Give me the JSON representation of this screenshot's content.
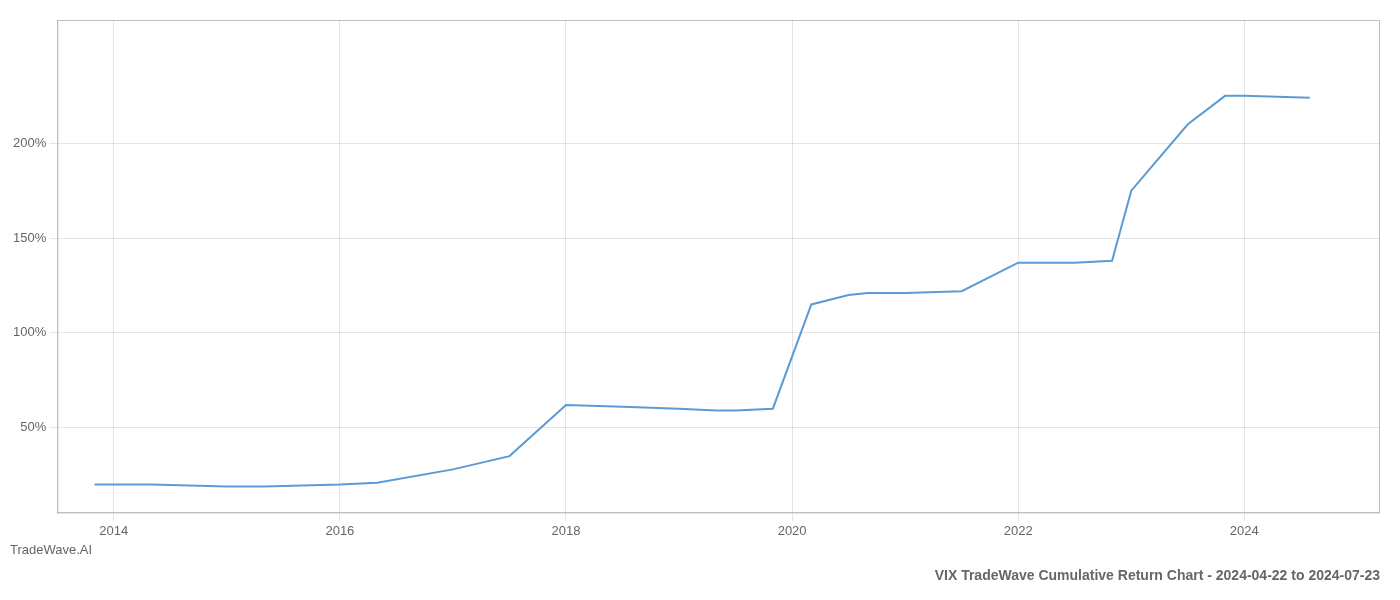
{
  "chart_data": {
    "type": "line",
    "title": "VIX TradeWave Cumulative Return Chart - 2024-04-22 to 2024-07-23",
    "subtitle": "TradeWave.AI",
    "x": [
      2013.83,
      2014.33,
      2015.0,
      2015.33,
      2016.0,
      2016.33,
      2017.0,
      2017.5,
      2018.0,
      2018.5,
      2019.0,
      2019.33,
      2019.5,
      2019.83,
      2020.17,
      2020.5,
      2020.67,
      2020.83,
      2021.0,
      2021.5,
      2022.0,
      2022.5,
      2022.83,
      2023.0,
      2023.5,
      2023.83,
      2024.0,
      2024.58
    ],
    "values": [
      20,
      20,
      19,
      19,
      20,
      21,
      28,
      35,
      62,
      61,
      60,
      59,
      59,
      60,
      115,
      120,
      121,
      121,
      121,
      122,
      137,
      137,
      138,
      175,
      210,
      225,
      225,
      224
    ],
    "color": "#5b9bd5",
    "xlim": [
      2013.5,
      2025.2
    ],
    "ylim": [
      5,
      265
    ],
    "xticks": [
      2014,
      2016,
      2018,
      2020,
      2022,
      2024
    ],
    "yticks": [
      {
        "value": 50,
        "label": "50%"
      },
      {
        "value": 100,
        "label": "100%"
      },
      {
        "value": 150,
        "label": "150%"
      },
      {
        "value": 200,
        "label": "200%"
      }
    ],
    "grid": true
  }
}
